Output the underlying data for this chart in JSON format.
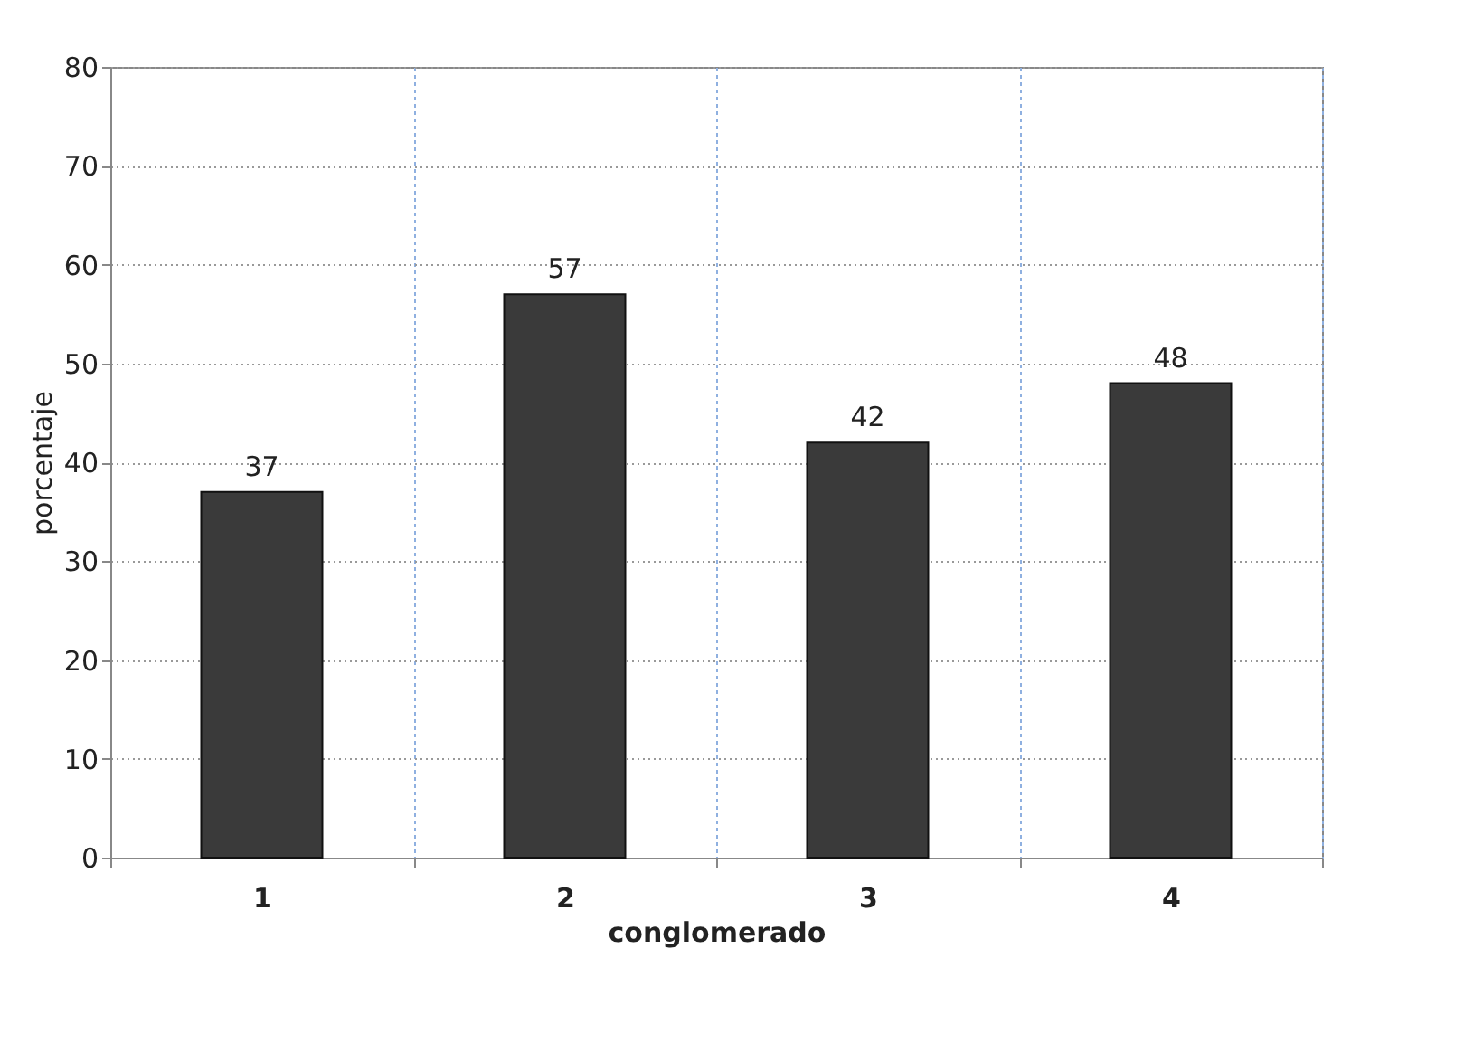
{
  "chart_data": {
    "type": "bar",
    "xlabel": "conglomerado",
    "ylabel": "porcentaje",
    "categories": [
      "1",
      "2",
      "3",
      "4"
    ],
    "values": [
      37,
      57,
      42,
      48
    ],
    "color": "#3a3a3a",
    "ylim": [
      0,
      80
    ],
    "yticks": [
      0,
      10,
      20,
      30,
      40,
      50,
      60,
      70,
      80
    ],
    "grid": true,
    "data_labels": true
  }
}
